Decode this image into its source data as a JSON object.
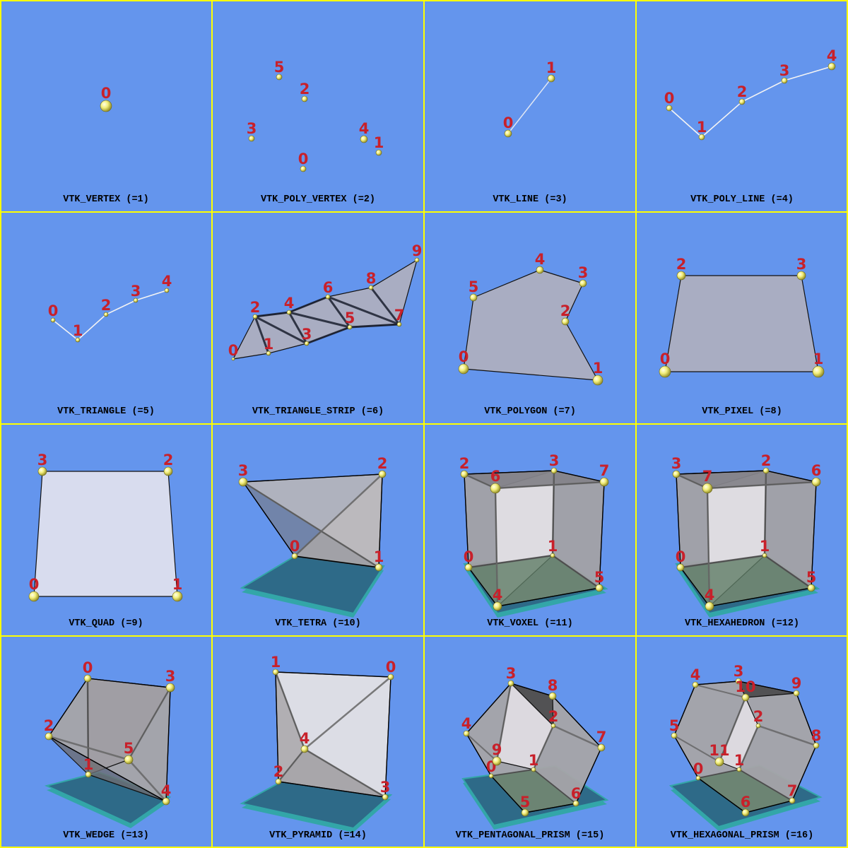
{
  "colors": {
    "background": "#6495ed",
    "grid": "#ffff00",
    "point_label": "#c8202a",
    "point": "#f2ee7a",
    "floor": "#2e6a88",
    "floor_edge": "#33a6a8"
  },
  "panels": [
    {
      "title": "VTK_VERTEX (=1)",
      "point_labels": [
        "0"
      ]
    },
    {
      "title": "VTK_POLY_VERTEX (=2)",
      "point_labels": [
        "0",
        "1",
        "2",
        "3",
        "4",
        "5"
      ]
    },
    {
      "title": "VTK_LINE (=3)",
      "point_labels": [
        "0",
        "1"
      ]
    },
    {
      "title": "VTK_POLY_LINE (=4)",
      "point_labels": [
        "0",
        "1",
        "2",
        "3",
        "4"
      ]
    },
    {
      "title": "VTK_TRIANGLE (=5)",
      "point_labels": [
        "0",
        "1",
        "2",
        "3",
        "4"
      ]
    },
    {
      "title": "VTK_TRIANGLE_STRIP (=6)",
      "point_labels": [
        "0",
        "1",
        "2",
        "3",
        "4",
        "5",
        "6",
        "7",
        "8",
        "9"
      ]
    },
    {
      "title": "VTK_POLYGON (=7)",
      "point_labels": [
        "0",
        "1",
        "2",
        "3",
        "4",
        "5"
      ]
    },
    {
      "title": "VTK_PIXEL (=8)",
      "point_labels": [
        "0",
        "1",
        "2",
        "3"
      ]
    },
    {
      "title": "VTK_QUAD (=9)",
      "point_labels": [
        "0",
        "1",
        "2",
        "3"
      ]
    },
    {
      "title": "VTK_TETRA (=10)",
      "point_labels": [
        "0",
        "1",
        "2",
        "3"
      ]
    },
    {
      "title": "VTK_VOXEL (=11)",
      "point_labels": [
        "0",
        "1",
        "2",
        "3",
        "4",
        "5",
        "6",
        "7"
      ]
    },
    {
      "title": "VTK_HEXAHEDRON (=12)",
      "point_labels": [
        "0",
        "1",
        "2",
        "3",
        "4",
        "5",
        "6",
        "7"
      ]
    },
    {
      "title": "VTK_WEDGE (=13)",
      "point_labels": [
        "0",
        "1",
        "2",
        "3",
        "4",
        "5"
      ]
    },
    {
      "title": "VTK_PYRAMID (=14)",
      "point_labels": [
        "0",
        "1",
        "2",
        "3",
        "4"
      ]
    },
    {
      "title": "VTK_PENTAGONAL_PRISM (=15)",
      "point_labels": [
        "0",
        "1",
        "2",
        "3",
        "4",
        "5",
        "6",
        "7",
        "8",
        "9"
      ]
    },
    {
      "title": "VTK_HEXAGONAL_PRISM (=16)",
      "point_labels": [
        "0",
        "1",
        "2",
        "3",
        "4",
        "5",
        "6",
        "7",
        "8",
        "9",
        "10",
        "11"
      ]
    }
  ]
}
